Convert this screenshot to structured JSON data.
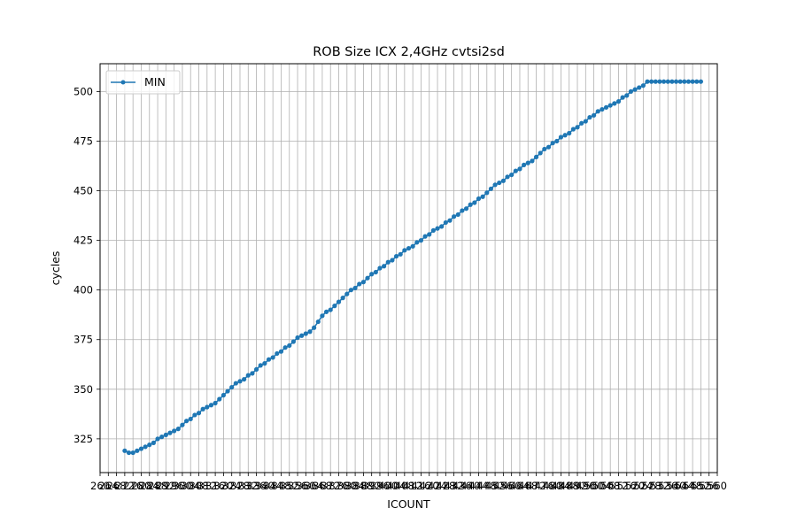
{
  "chart_data": {
    "type": "line",
    "title": "ROB Size ICX 2,4GHz cvtsi2sd",
    "xlabel": "ICOUNT",
    "ylabel": "cycles",
    "xlim": [
      260,
      560
    ],
    "ylim": [
      308,
      514
    ],
    "grid": true,
    "legend_position": "upper-left",
    "colors": {
      "series": "#1f77b4",
      "grid": "#b0b0b0"
    },
    "x_tick_step": 4,
    "y_ticks": [
      325,
      350,
      375,
      400,
      425,
      450,
      475,
      500
    ],
    "series": [
      {
        "name": "MIN",
        "marker": "point",
        "x": [
          272,
          274,
          276,
          278,
          280,
          282,
          284,
          286,
          288,
          290,
          292,
          294,
          296,
          298,
          300,
          302,
          304,
          306,
          308,
          310,
          312,
          314,
          316,
          318,
          320,
          322,
          324,
          326,
          328,
          330,
          332,
          334,
          336,
          338,
          340,
          342,
          344,
          346,
          348,
          350,
          352,
          354,
          356,
          358,
          360,
          362,
          364,
          366,
          368,
          370,
          372,
          374,
          376,
          378,
          380,
          382,
          384,
          386,
          388,
          390,
          392,
          394,
          396,
          398,
          400,
          402,
          404,
          406,
          408,
          410,
          412,
          414,
          416,
          418,
          420,
          422,
          424,
          426,
          428,
          430,
          432,
          434,
          436,
          438,
          440,
          442,
          444,
          446,
          448,
          450,
          452,
          454,
          456,
          458,
          460,
          462,
          464,
          466,
          468,
          470,
          472,
          474,
          476,
          478,
          480,
          482,
          484,
          486,
          488,
          490,
          492,
          494,
          496,
          498,
          500,
          502,
          504,
          506,
          508,
          510,
          512,
          514,
          516,
          518,
          520,
          522,
          524,
          526,
          528,
          530,
          532,
          534,
          536,
          538,
          540,
          542,
          544,
          546,
          548,
          550,
          552
        ],
        "y": [
          319,
          318,
          318,
          319,
          320,
          321,
          322,
          323,
          325,
          326,
          327,
          328,
          329,
          330,
          332,
          334,
          335,
          337,
          338,
          340,
          341,
          342,
          343,
          345,
          347,
          349,
          351,
          353,
          354,
          355,
          357,
          358,
          360,
          362,
          363,
          365,
          366,
          368,
          369,
          371,
          372,
          374,
          376,
          377,
          378,
          379,
          381,
          384,
          387,
          389,
          390,
          392,
          394,
          396,
          398,
          400,
          401,
          403,
          404,
          406,
          408,
          409,
          411,
          412,
          414,
          415,
          417,
          418,
          420,
          421,
          422,
          424,
          425,
          427,
          428,
          430,
          431,
          432,
          434,
          435,
          437,
          438,
          440,
          441,
          443,
          444,
          446,
          447,
          449,
          451,
          453,
          454,
          455,
          457,
          458,
          460,
          461,
          463,
          464,
          465,
          467,
          469,
          471,
          472,
          474,
          475,
          477,
          478,
          479,
          481,
          482,
          484,
          485,
          487,
          488,
          490,
          491,
          492,
          493,
          494,
          495,
          497,
          498,
          500,
          501,
          502,
          503,
          505,
          505,
          505,
          505,
          505,
          505,
          505,
          505,
          505,
          505,
          505,
          505,
          505,
          505
        ]
      }
    ]
  }
}
